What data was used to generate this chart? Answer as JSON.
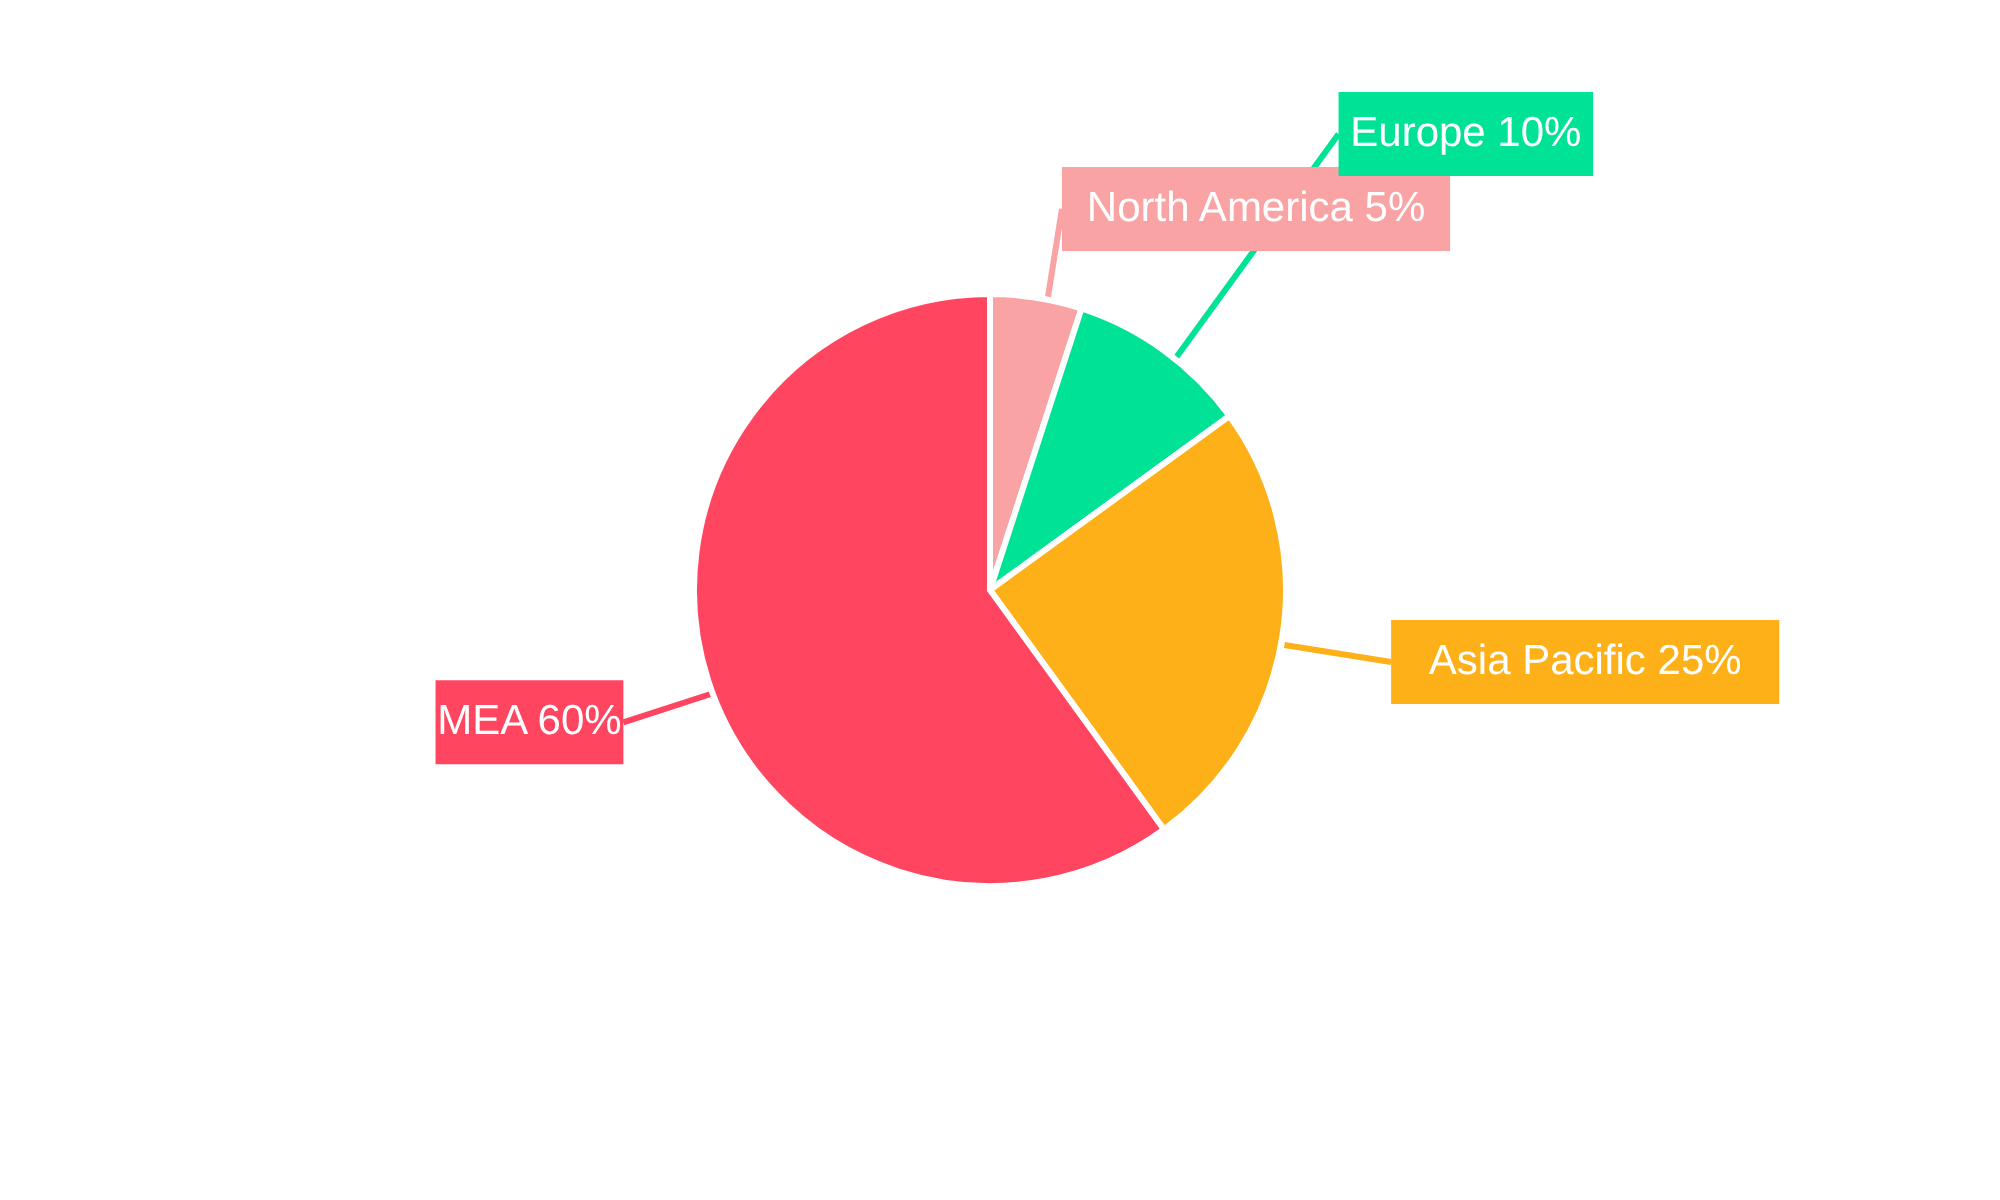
{
  "chart_data": {
    "type": "pie",
    "categories": [
      "North America",
      "Europe",
      "Asia Pacific",
      "MEA"
    ],
    "values": [
      5,
      10,
      25,
      60
    ],
    "value_labels": [
      "5%",
      "10%",
      "25%",
      "60%"
    ],
    "colors": [
      "#f9a3a4",
      "#00e396",
      "#feb019",
      "#ff4560"
    ]
  }
}
